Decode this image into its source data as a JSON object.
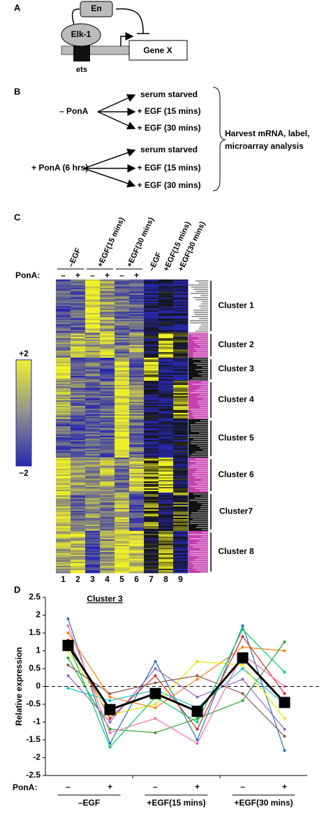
{
  "panel_a": {
    "letter": "A",
    "labels": [
      "En",
      "Elk-1",
      "Gene X",
      "ets"
    ]
  },
  "panel_b": {
    "letter": "B",
    "conditions": [
      {
        "label": "– PonA",
        "outcomes": [
          "serum starved",
          "+ EGF (15 mins)",
          "+ EGF (30 mins)"
        ]
      },
      {
        "label": "+ PonA (6 hrs)",
        "outcomes": [
          "serum starved",
          "+ EGF (15 mins)",
          "+ EGF (30 mins)"
        ]
      }
    ],
    "result": [
      "Harvest mRNA, label,",
      "microarray analysis"
    ]
  },
  "panel_c": {
    "letter": "C",
    "column_headers": [
      "–EGF",
      "+EGF(15 mins)",
      "+EGF(30 mins)",
      "–EGF",
      "+EGF(15 mins)",
      "+EGF(30 mins)"
    ],
    "pona_label": "PonA:",
    "pona_signs": [
      "–",
      "+",
      "–",
      "+",
      "–",
      "+"
    ],
    "scale_labels": [
      "+2",
      "−2"
    ],
    "columns": [
      "1",
      "2",
      "3",
      "4",
      "5",
      "6",
      "7",
      "8",
      "9"
    ],
    "clusters": [
      "Cluster 1",
      "Cluster 2",
      "Cluster 3",
      "Cluster 4",
      "Cluster 5",
      "Cluster 6",
      "Cluster7",
      "Cluster 8"
    ]
  },
  "chart_data": {
    "type": "line",
    "letter": "D",
    "title": "Cluster 3",
    "ylabel": "Relative expression",
    "xlabel": "PonA:",
    "categories": [
      "–",
      "+",
      "–",
      "+",
      "–",
      "+"
    ],
    "groups": [
      "–EGF",
      "+EGF(15 mins)",
      "+EGF(30 mins)"
    ],
    "ylim": [
      -2.5,
      2.5
    ],
    "yticks": [
      -2.5,
      -2,
      -1.5,
      -1,
      -0.5,
      0,
      0.5,
      1,
      1.5,
      2,
      2.5
    ],
    "reference_line": 0,
    "series": [
      {
        "color": "#1f77b4",
        "values": [
          1.9,
          -1.6,
          0.7,
          -1.5,
          1.7,
          -1.8
        ]
      },
      {
        "color": "#ff7f0e",
        "values": [
          1.5,
          -0.3,
          -0.6,
          0.2,
          1.1,
          1.0
        ]
      },
      {
        "color": "#2ca02c",
        "values": [
          0.8,
          -1.2,
          -1.3,
          -0.9,
          -0.4,
          1.25
        ]
      },
      {
        "color": "#d62728",
        "values": [
          1.3,
          -0.9,
          0.3,
          -1.2,
          1.4,
          -0.2
        ]
      },
      {
        "color": "#9467bd",
        "values": [
          0.3,
          -1.0,
          0.5,
          -0.3,
          0.2,
          -1.2
        ]
      },
      {
        "color": "#17becf",
        "values": [
          -0.05,
          -0.4,
          -0.1,
          -0.6,
          0.5,
          -0.5
        ]
      },
      {
        "color": "#e6e600",
        "values": [
          1.0,
          -0.8,
          -0.5,
          0.7,
          0.6,
          -0.9
        ]
      },
      {
        "color": "#ff69b4",
        "values": [
          1.7,
          -1.3,
          -0.9,
          -1.6,
          0.9,
          0.0
        ]
      },
      {
        "color": "#8c564b",
        "values": [
          0.6,
          -0.2,
          0.1,
          0.3,
          -0.2,
          -1.4
        ]
      },
      {
        "color": "#00cc66",
        "values": [
          1.2,
          -1.7,
          -0.3,
          -1.0,
          1.6,
          0.4
        ]
      },
      {
        "color": "#000000",
        "marker": "square",
        "values": [
          1.15,
          -0.65,
          -0.2,
          -0.7,
          0.8,
          -0.45
        ]
      }
    ]
  }
}
